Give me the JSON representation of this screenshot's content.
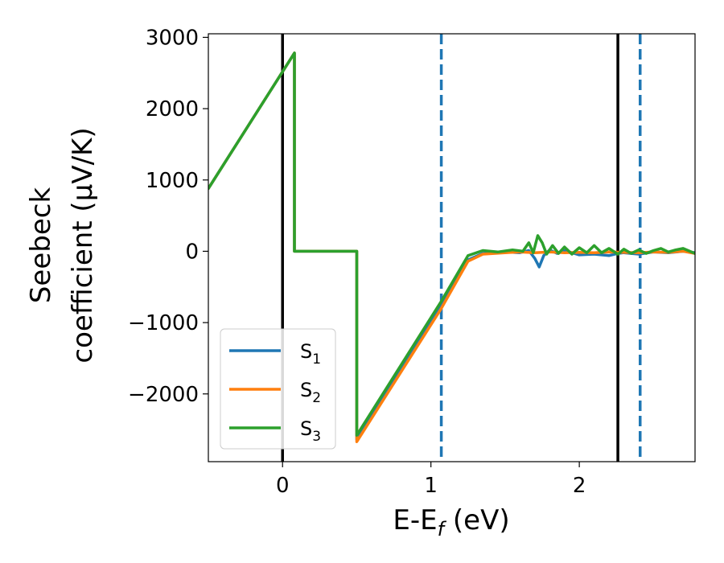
{
  "chart_data": {
    "type": "line",
    "xlabel": "E-E",
    "xlabel_sub": "f",
    "xlabel_unit": " (eV)",
    "ylabel_line1": "Seebeck",
    "ylabel_line2": "coefficient  (μV/K)",
    "xlim": [
      -0.5,
      2.78
    ],
    "ylim": [
      -2950,
      3050
    ],
    "x_ticks": [
      0,
      1,
      2
    ],
    "y_ticks": [
      -2000,
      -1000,
      0,
      1000,
      2000,
      3000
    ],
    "x_tick_labels": [
      "0",
      "1",
      "2"
    ],
    "y_tick_labels": [
      "−2000",
      "−1000",
      "0",
      "1000",
      "2000",
      "3000"
    ],
    "vlines_solid": [
      0.0,
      2.26
    ],
    "vlines_dashed": [
      1.07,
      2.41
    ],
    "colors": {
      "s1": "#1f77b4",
      "s2": "#ff7f0e",
      "s3": "#2ca02c",
      "vline_solid": "#000000",
      "vline_dashed": "#1f77b4"
    },
    "legend_placement": "lower-left",
    "grid": false,
    "series": [
      {
        "name": "S",
        "name_sub": "1",
        "color": "#1f77b4",
        "x": [
          -0.5,
          0.08,
          0.08,
          0.5,
          0.5,
          1.07,
          1.25,
          1.35,
          1.5,
          1.6,
          1.66,
          1.7,
          1.73,
          1.76,
          1.8,
          1.85,
          1.9,
          2.0,
          2.1,
          2.2,
          2.26,
          2.3,
          2.4,
          2.5,
          2.6,
          2.7,
          2.78
        ],
        "y": [
          880,
          2780,
          0,
          0,
          -2640,
          -760,
          -120,
          -30,
          -10,
          -20,
          10,
          -100,
          -220,
          -60,
          20,
          -30,
          10,
          -50,
          -40,
          -60,
          -30,
          -20,
          -40,
          -10,
          -20,
          0,
          -20
        ]
      },
      {
        "name": "S",
        "name_sub": "2",
        "color": "#ff7f0e",
        "x": [
          -0.5,
          0.08,
          0.08,
          0.5,
          0.5,
          1.07,
          1.25,
          1.35,
          1.5,
          1.6,
          1.7,
          1.8,
          1.9,
          2.0,
          2.1,
          2.2,
          2.3,
          2.4,
          2.5,
          2.6,
          2.7,
          2.78
        ],
        "y": [
          880,
          2780,
          0,
          0,
          -2670,
          -800,
          -140,
          -40,
          -20,
          -10,
          -20,
          -10,
          -20,
          -15,
          -20,
          -10,
          -15,
          -20,
          -10,
          -15,
          0,
          -30
        ]
      },
      {
        "name": "S",
        "name_sub": "3",
        "color": "#2ca02c",
        "x": [
          -0.5,
          0.08,
          0.08,
          0.5,
          0.5,
          1.07,
          1.25,
          1.35,
          1.45,
          1.55,
          1.62,
          1.66,
          1.69,
          1.72,
          1.75,
          1.78,
          1.82,
          1.86,
          1.9,
          1.95,
          2.0,
          2.05,
          2.1,
          2.15,
          2.2,
          2.26,
          2.3,
          2.35,
          2.4,
          2.45,
          2.5,
          2.55,
          2.6,
          2.65,
          2.7,
          2.78
        ],
        "y": [
          880,
          2780,
          0,
          0,
          -2580,
          -700,
          -60,
          10,
          -10,
          20,
          0,
          120,
          -20,
          220,
          120,
          -40,
          80,
          -30,
          60,
          -40,
          50,
          -20,
          80,
          -20,
          40,
          -40,
          30,
          -30,
          20,
          -30,
          10,
          40,
          -10,
          20,
          40,
          -30
        ]
      }
    ]
  }
}
